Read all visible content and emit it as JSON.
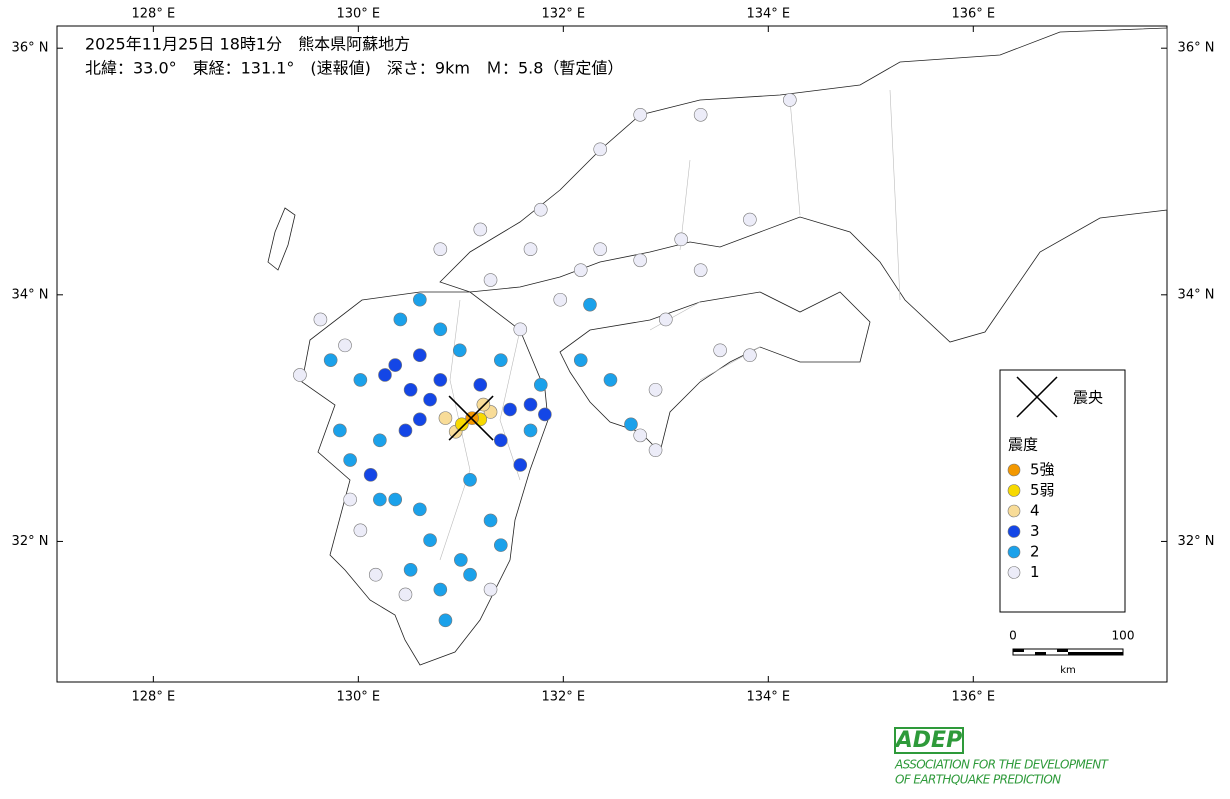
{
  "map": {
    "title": "2025年11月25日 18時1分　熊本県阿蘇地方",
    "subtitle": "北緯：33.0°　東経：131.1°　(速報値)　深さ：9km　Ｍ：5.8（暫定値）",
    "xlim": [
      127.06,
      137.89
    ],
    "ylim": [
      30.86,
      36.18
    ],
    "xticks": [
      {
        "value": 128,
        "label": "128° E"
      },
      {
        "value": 130,
        "label": "130° E"
      },
      {
        "value": 132,
        "label": "132° E"
      },
      {
        "value": 134,
        "label": "134° E"
      },
      {
        "value": 136,
        "label": "136° E"
      }
    ],
    "yticks": [
      {
        "value": 32,
        "label": "32° N"
      },
      {
        "value": 34,
        "label": "34° N"
      },
      {
        "value": 36,
        "label": "36° N"
      }
    ],
    "epicenter": {
      "lon": 131.1,
      "lat": 33.0
    },
    "legend": {
      "epicenter_label": "震央",
      "title": "震度",
      "items": [
        {
          "label": "5強",
          "color": "#f39800"
        },
        {
          "label": "5弱",
          "color": "#f7d900"
        },
        {
          "label": "4",
          "color": "#f8dc98"
        },
        {
          "label": "3",
          "color": "#1446e6"
        },
        {
          "label": "2",
          "color": "#1ba1ea"
        },
        {
          "label": "1",
          "color": "#ececf8"
        }
      ]
    },
    "scale": {
      "ticks": [
        0,
        100
      ],
      "unit": "km"
    },
    "stations": [
      [
        131.11,
        33.0,
        "5強"
      ],
      [
        131.01,
        32.95,
        "5弱"
      ],
      [
        131.19,
        32.99,
        "5弱"
      ],
      [
        131.29,
        33.05,
        "4"
      ],
      [
        130.95,
        32.89,
        "4"
      ],
      [
        130.85,
        33.0,
        "4"
      ],
      [
        131.22,
        33.11,
        "4"
      ],
      [
        130.36,
        33.43,
        "3"
      ],
      [
        130.51,
        33.23,
        "3"
      ],
      [
        130.6,
        32.99,
        "3"
      ],
      [
        130.7,
        33.15,
        "3"
      ],
      [
        130.8,
        33.31,
        "3"
      ],
      [
        131.48,
        33.07,
        "3"
      ],
      [
        131.68,
        33.11,
        "3"
      ],
      [
        131.82,
        33.03,
        "3"
      ],
      [
        131.39,
        32.82,
        "3"
      ],
      [
        131.58,
        32.62,
        "3"
      ],
      [
        131.19,
        33.27,
        "3"
      ],
      [
        130.6,
        33.51,
        "3"
      ],
      [
        130.26,
        33.35,
        "3"
      ],
      [
        130.46,
        32.9,
        "3"
      ],
      [
        130.12,
        32.54,
        "3"
      ],
      [
        129.82,
        32.9,
        "2"
      ],
      [
        129.92,
        32.66,
        "2"
      ],
      [
        130.21,
        32.82,
        "2"
      ],
      [
        130.02,
        33.31,
        "2"
      ],
      [
        129.73,
        33.47,
        "2"
      ],
      [
        130.41,
        33.8,
        "2"
      ],
      [
        130.6,
        33.96,
        "2"
      ],
      [
        130.8,
        33.72,
        "2"
      ],
      [
        130.99,
        33.55,
        "2"
      ],
      [
        131.39,
        33.47,
        "2"
      ],
      [
        131.78,
        33.27,
        "2"
      ],
      [
        131.09,
        32.5,
        "2"
      ],
      [
        131.29,
        32.17,
        "2"
      ],
      [
        131.39,
        31.97,
        "2"
      ],
      [
        131.0,
        31.85,
        "2"
      ],
      [
        130.7,
        32.01,
        "2"
      ],
      [
        130.51,
        31.77,
        "2"
      ],
      [
        130.8,
        31.61,
        "2"
      ],
      [
        130.6,
        32.26,
        "2"
      ],
      [
        130.36,
        32.34,
        "2"
      ],
      [
        132.26,
        33.92,
        "2"
      ],
      [
        132.17,
        33.47,
        "2"
      ],
      [
        132.46,
        33.31,
        "2"
      ],
      [
        132.66,
        32.95,
        "2"
      ],
      [
        130.85,
        31.36,
        "2"
      ],
      [
        131.09,
        31.73,
        "2"
      ],
      [
        130.21,
        32.34,
        "2"
      ],
      [
        131.68,
        32.9,
        "2"
      ],
      [
        132.75,
        34.28,
        "1"
      ],
      [
        132.36,
        34.37,
        "1"
      ],
      [
        131.97,
        33.96,
        "1"
      ],
      [
        131.58,
        33.72,
        "1"
      ],
      [
        131.29,
        34.12,
        "1"
      ],
      [
        130.8,
        34.37,
        "1"
      ],
      [
        131.19,
        34.53,
        "1"
      ],
      [
        131.78,
        34.69,
        "1"
      ],
      [
        132.36,
        35.18,
        "1"
      ],
      [
        132.75,
        35.46,
        "1"
      ],
      [
        133.34,
        35.46,
        "1"
      ],
      [
        134.21,
        35.58,
        "1"
      ],
      [
        133.0,
        33.8,
        "1"
      ],
      [
        133.34,
        34.2,
        "1"
      ],
      [
        133.53,
        33.55,
        "1"
      ],
      [
        133.82,
        33.51,
        "1"
      ],
      [
        132.9,
        33.23,
        "1"
      ],
      [
        132.9,
        32.74,
        "1"
      ],
      [
        132.75,
        32.86,
        "1"
      ],
      [
        129.92,
        32.34,
        "1"
      ],
      [
        130.02,
        32.09,
        "1"
      ],
      [
        130.17,
        31.73,
        "1"
      ],
      [
        130.46,
        31.57,
        "1"
      ],
      [
        131.29,
        31.61,
        "1"
      ],
      [
        129.63,
        33.8,
        "1"
      ],
      [
        129.43,
        33.35,
        "1"
      ],
      [
        129.87,
        33.59,
        "1"
      ],
      [
        131.68,
        34.37,
        "1"
      ],
      [
        132.17,
        34.2,
        "1"
      ],
      [
        133.15,
        34.45,
        "1"
      ],
      [
        133.82,
        34.61,
        "1"
      ]
    ]
  },
  "logo": {
    "name": "ADEP",
    "line1": "ASSOCIATION FOR THE DEVELOPMENT",
    "line2": "OF EARTHQUAKE PREDICTION"
  }
}
